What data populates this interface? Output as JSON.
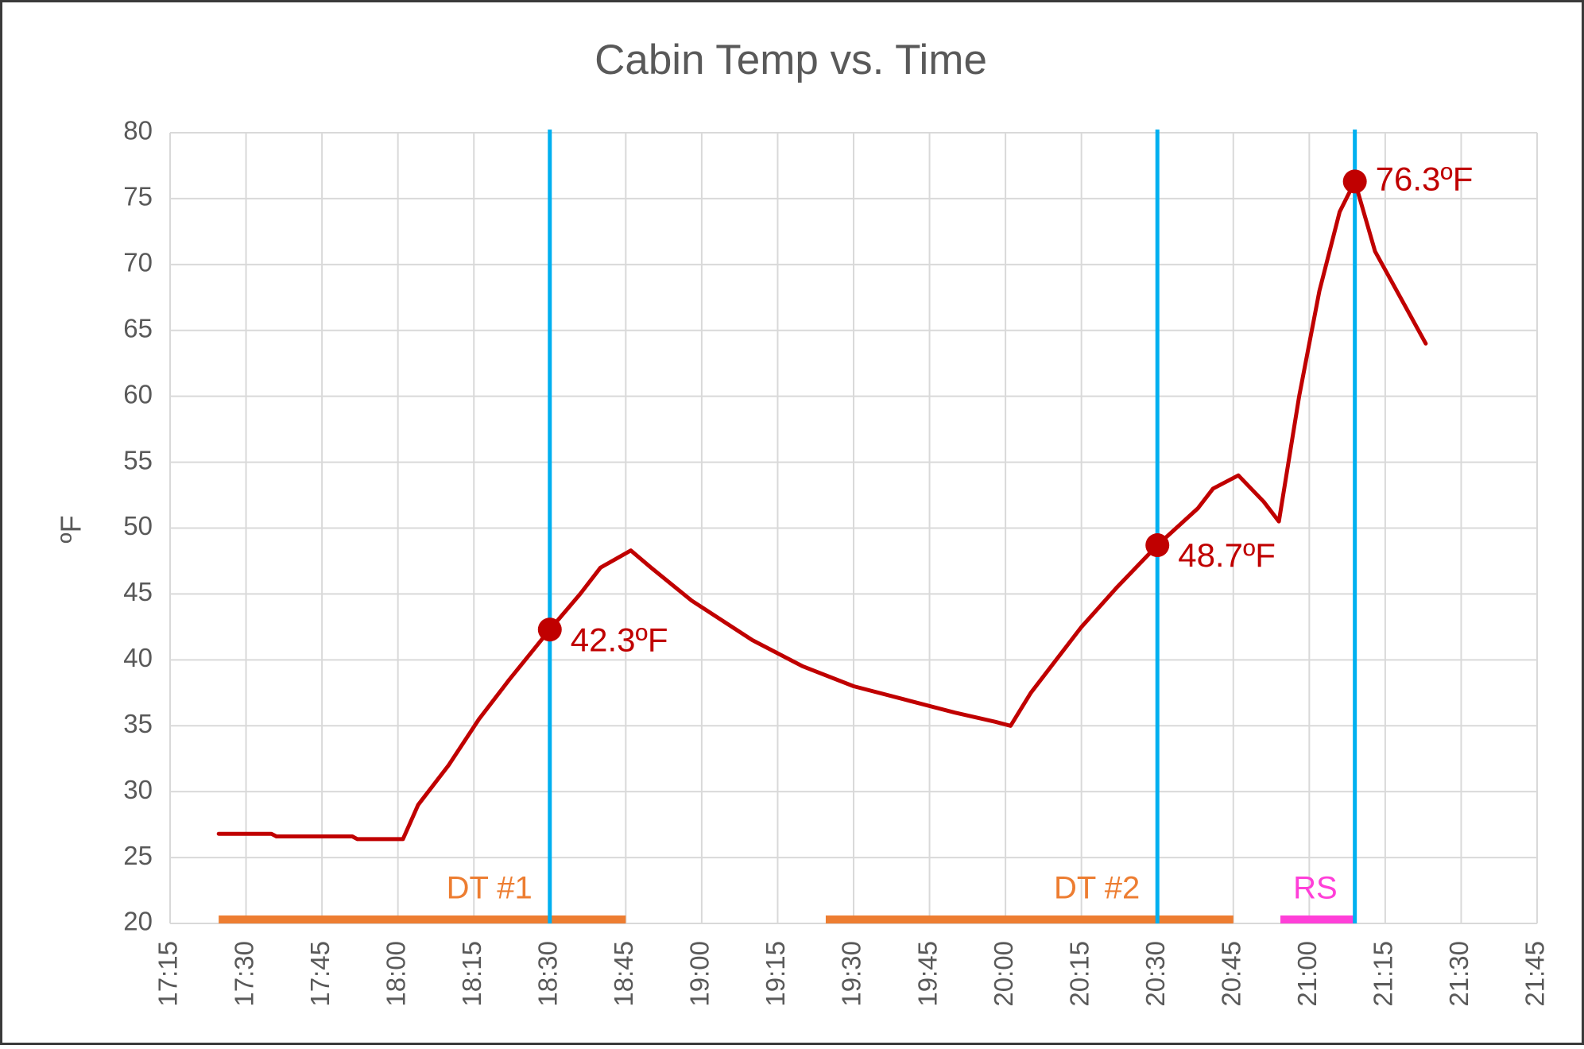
{
  "chart_data": {
    "type": "line",
    "title": "Cabin Temp vs. Time",
    "y_label": "ºF",
    "color": "#c00000",
    "x": [
      1044.6,
      1055,
      1056,
      1071,
      1072,
      1081,
      1084,
      1090,
      1096,
      1102,
      1110,
      1116,
      1120,
      1126,
      1130,
      1138,
      1150,
      1160,
      1170,
      1180,
      1190,
      1198,
      1201,
      1205,
      1215,
      1222,
      1230,
      1238,
      1241,
      1246,
      1251,
      1254,
      1258,
      1262,
      1266,
      1269,
      1273,
      1278,
      1283
    ],
    "values": [
      26.8,
      26.8,
      26.6,
      26.6,
      26.4,
      26.4,
      29,
      32,
      35.5,
      38.5,
      42.3,
      45,
      47,
      48.3,
      47,
      44.5,
      41.5,
      39.5,
      38,
      37,
      36,
      35.3,
      35,
      37.5,
      42.5,
      45.5,
      48.7,
      51.5,
      53,
      54,
      52,
      50.5,
      60,
      68,
      74,
      76.3,
      71,
      67.5,
      64
    ],
    "xlim": [
      1035,
      1305
    ],
    "xticks": [
      {
        "value": 1035,
        "label": "17:15"
      },
      {
        "value": 1050,
        "label": "17:30"
      },
      {
        "value": 1065,
        "label": "17:45"
      },
      {
        "value": 1080,
        "label": "18:00"
      },
      {
        "value": 1095,
        "label": "18:15"
      },
      {
        "value": 1110,
        "label": "18:30"
      },
      {
        "value": 1125,
        "label": "18:45"
      },
      {
        "value": 1140,
        "label": "19:00"
      },
      {
        "value": 1155,
        "label": "19:15"
      },
      {
        "value": 1170,
        "label": "19:30"
      },
      {
        "value": 1185,
        "label": "19:45"
      },
      {
        "value": 1200,
        "label": "20:00"
      },
      {
        "value": 1215,
        "label": "20:15"
      },
      {
        "value": 1230,
        "label": "20:30"
      },
      {
        "value": 1245,
        "label": "20:45"
      },
      {
        "value": 1260,
        "label": "21:00"
      },
      {
        "value": 1275,
        "label": "21:15"
      },
      {
        "value": 1290,
        "label": "21:30"
      },
      {
        "value": 1305,
        "label": "21:45"
      }
    ],
    "ylim": [
      20,
      80
    ],
    "yticks": [
      20,
      25,
      30,
      35,
      40,
      45,
      50,
      55,
      60,
      65,
      70,
      75,
      80
    ],
    "grid": true,
    "annotations": [
      {
        "x": 1110,
        "y": 42.3,
        "label": "42.3ºF"
      },
      {
        "x": 1230,
        "y": 48.7,
        "label": "48.7ºF"
      },
      {
        "x": 1269,
        "y": 76.3,
        "label": "76.3ºF"
      }
    ],
    "marker_line_color": "#00b0f0",
    "periods": [
      {
        "label": "DT #1",
        "start": 1044.6,
        "end": 1125,
        "color": "#ed7d31"
      },
      {
        "label": "DT #2",
        "start": 1164.5,
        "end": 1245,
        "color": "#ed7d31"
      },
      {
        "label": "RS",
        "start": 1254.3,
        "end": 1269,
        "color": "#ff3fd8"
      }
    ]
  }
}
